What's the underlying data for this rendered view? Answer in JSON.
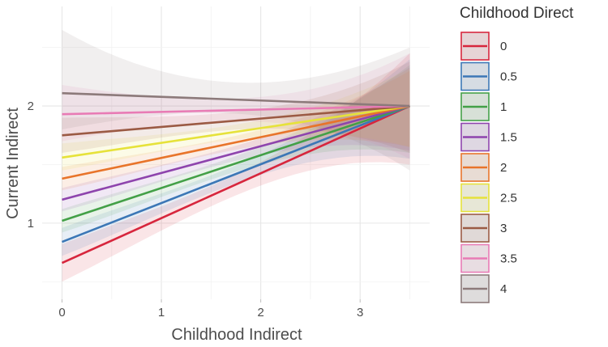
{
  "chart_data": {
    "type": "line",
    "xlabel": "Childhood Indirect",
    "ylabel": "Current Indirect",
    "legend_title": "Childhood Direct",
    "legend_position": "right",
    "grid": true,
    "xlim": [
      -0.2,
      3.7
    ],
    "ylim": [
      0.35,
      2.85
    ],
    "x_ticks": [
      0,
      1,
      2,
      3
    ],
    "y_ticks": [
      1,
      2
    ],
    "x_tick_labels": [
      "0",
      "1",
      "2",
      "3"
    ],
    "y_tick_labels": [
      "1",
      "2"
    ],
    "x_range": [
      0,
      3.5
    ],
    "series": [
      {
        "name": "0",
        "color": "#d7263d",
        "start": [
          0,
          0.66
        ],
        "end": [
          3.5,
          2.0
        ],
        "ci_low_start": 0.5,
        "ci_high_start": 0.82,
        "ci_low_end": 1.5,
        "ci_high_end": 2.45
      },
      {
        "name": "0.5",
        "color": "#3c77b6",
        "start": [
          0,
          0.84
        ],
        "end": [
          3.5,
          2.0
        ],
        "ci_low_start": 0.72,
        "ci_high_start": 0.96,
        "ci_low_end": 1.55,
        "ci_high_end": 2.4
      },
      {
        "name": "1",
        "color": "#43a047",
        "start": [
          0,
          1.02
        ],
        "end": [
          3.5,
          2.0
        ],
        "ci_low_start": 0.92,
        "ci_high_start": 1.12,
        "ci_low_end": 1.6,
        "ci_high_end": 2.35
      },
      {
        "name": "1.5",
        "color": "#8e44ad",
        "start": [
          0,
          1.2
        ],
        "end": [
          3.5,
          2.0
        ],
        "ci_low_start": 1.1,
        "ci_high_start": 1.3,
        "ci_low_end": 1.62,
        "ci_high_end": 2.33
      },
      {
        "name": "2",
        "color": "#e8742a",
        "start": [
          0,
          1.38
        ],
        "end": [
          3.5,
          2.0
        ],
        "ci_low_start": 1.28,
        "ci_high_start": 1.48,
        "ci_low_end": 1.65,
        "ci_high_end": 2.3
      },
      {
        "name": "2.5",
        "color": "#e6e23a",
        "start": [
          0,
          1.56
        ],
        "end": [
          3.5,
          2.0
        ],
        "ci_low_start": 1.45,
        "ci_high_start": 1.68,
        "ci_low_end": 1.65,
        "ci_high_end": 2.32
      },
      {
        "name": "3",
        "color": "#9b5a44",
        "start": [
          0,
          1.75
        ],
        "end": [
          3.5,
          2.0
        ],
        "ci_low_start": 1.6,
        "ci_high_start": 1.9,
        "ci_low_end": 1.6,
        "ci_high_end": 2.38
      },
      {
        "name": "3.5",
        "color": "#e87bb5",
        "start": [
          0,
          1.93
        ],
        "end": [
          3.5,
          2.0
        ],
        "ci_low_start": 1.7,
        "ci_high_start": 2.18,
        "ci_low_end": 1.55,
        "ci_high_end": 2.45
      },
      {
        "name": "4",
        "color": "#8c7a7a",
        "start": [
          0,
          2.11
        ],
        "end": [
          3.5,
          2.0
        ],
        "ci_low_start": 1.8,
        "ci_high_start": 2.65,
        "ci_low_end": 1.45,
        "ci_high_end": 2.5
      }
    ]
  }
}
